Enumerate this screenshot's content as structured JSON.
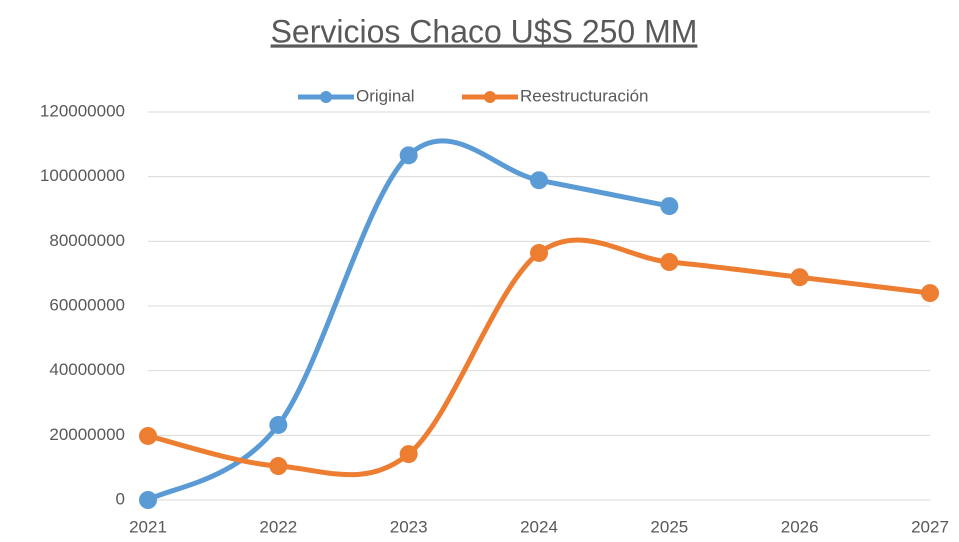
{
  "chart_data": {
    "type": "line",
    "title": "Servicios Chaco U$S 250 MM",
    "x": [
      2021,
      2022,
      2023,
      2024,
      2025,
      2026,
      2027
    ],
    "series": [
      {
        "name": "Original",
        "color": "#5b9bd5",
        "values": [
          0,
          23200000,
          106600000,
          98900000,
          90900000,
          null,
          null
        ]
      },
      {
        "name": "Reestructuración",
        "color": "#ed7d31",
        "values": [
          19800000,
          10500000,
          14200000,
          76400000,
          73600000,
          68900000,
          64000000
        ]
      }
    ],
    "xlim": [
      2021,
      2027
    ],
    "xticks": [
      2021,
      2022,
      2023,
      2024,
      2025,
      2026,
      2027
    ],
    "ylim": [
      0,
      120000000
    ],
    "yticks": [
      0,
      20000000,
      40000000,
      60000000,
      80000000,
      100000000,
      120000000
    ],
    "grid": true,
    "smooth": true,
    "legend": "top"
  }
}
